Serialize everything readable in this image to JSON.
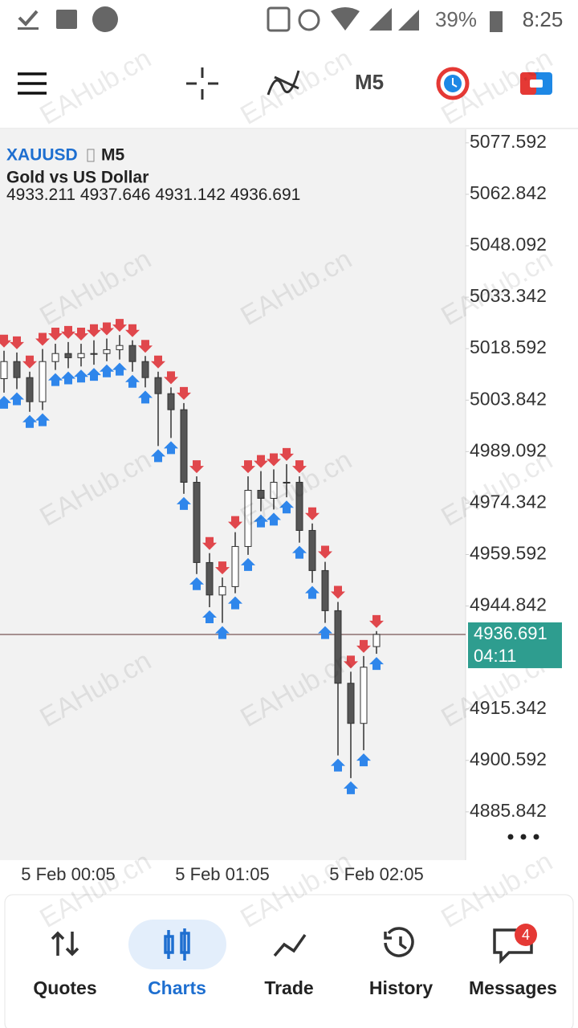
{
  "status_bar": {
    "battery": "39%",
    "time": "8:25"
  },
  "toolbar": {
    "timeframe": "M5"
  },
  "watermark": "EAHub.cn",
  "chart": {
    "type": "candlestick",
    "symbol": "XAUUSD",
    "timeframe": "M5",
    "description": "Gold vs US Dollar",
    "candles": {
      "open": [
        5010.0,
        5014.9,
        5010.3,
        5003.4,
        5014.9,
        5017.2,
        5016.0,
        5017.2,
        5017.2,
        5018.3,
        5019.5,
        5014.9,
        5010.3,
        5005.7,
        5001.1,
        4980.3,
        4957.3,
        4948.0,
        4950.4,
        4961.9,
        4978.0,
        4975.7,
        4980.3,
        4980.3,
        4966.5,
        4955.0,
        4943.5,
        4922.7,
        4911.2,
        4933.211
      ],
      "high": [
        5018.0,
        5017.5,
        5012.0,
        5018.5,
        5020.0,
        5020.5,
        5020.0,
        5021.0,
        5021.5,
        5022.5,
        5021.0,
        5016.5,
        5012.0,
        5007.5,
        5003.0,
        4982.0,
        4960.0,
        4953.0,
        4966.0,
        4982.0,
        4983.5,
        4984.0,
        4985.5,
        4982.0,
        4968.5,
        4957.5,
        4946.0,
        4926.0,
        4930.5,
        4937.646
      ],
      "low": [
        5006.0,
        5007.0,
        5000.5,
        5001.0,
        5012.5,
        5013.0,
        5013.5,
        5014.0,
        5015.0,
        5015.5,
        5012.0,
        5007.5,
        4990.7,
        4993.0,
        4977.0,
        4954.0,
        4944.5,
        4940.0,
        4948.5,
        4959.5,
        4972.0,
        4972.5,
        4976.0,
        4963.0,
        4951.5,
        4940.0,
        4902.0,
        4895.5,
        4903.5,
        4931.142
      ],
      "close": [
        5014.9,
        5010.3,
        5003.4,
        5014.9,
        5017.2,
        5016.0,
        5017.2,
        5017.2,
        5018.3,
        5019.5,
        5014.9,
        5010.3,
        5005.7,
        5001.1,
        4980.3,
        4957.3,
        4948.0,
        4950.4,
        4961.9,
        4978.0,
        4975.7,
        4980.3,
        4980.3,
        4966.5,
        4955.0,
        4943.5,
        4922.7,
        4911.2,
        4927.3,
        4936.691
      ]
    },
    "ylim": [
      4872.0,
      5081.7
    ],
    "yticks": [
      5077.592,
      5062.842,
      5048.092,
      5033.342,
      5018.592,
      5003.842,
      4989.092,
      4974.342,
      4959.592,
      4944.842,
      4915.342,
      4900.592,
      4885.842
    ],
    "last_price": 4936.691,
    "countdown": "04:11",
    "x_labels": [
      "5 Feb 00:05",
      "5 Feb 01:05",
      "5 Feb 02:05"
    ]
  },
  "nav": {
    "items": [
      "Quotes",
      "Charts",
      "Trade",
      "History",
      "Messages"
    ],
    "badge": "4"
  }
}
